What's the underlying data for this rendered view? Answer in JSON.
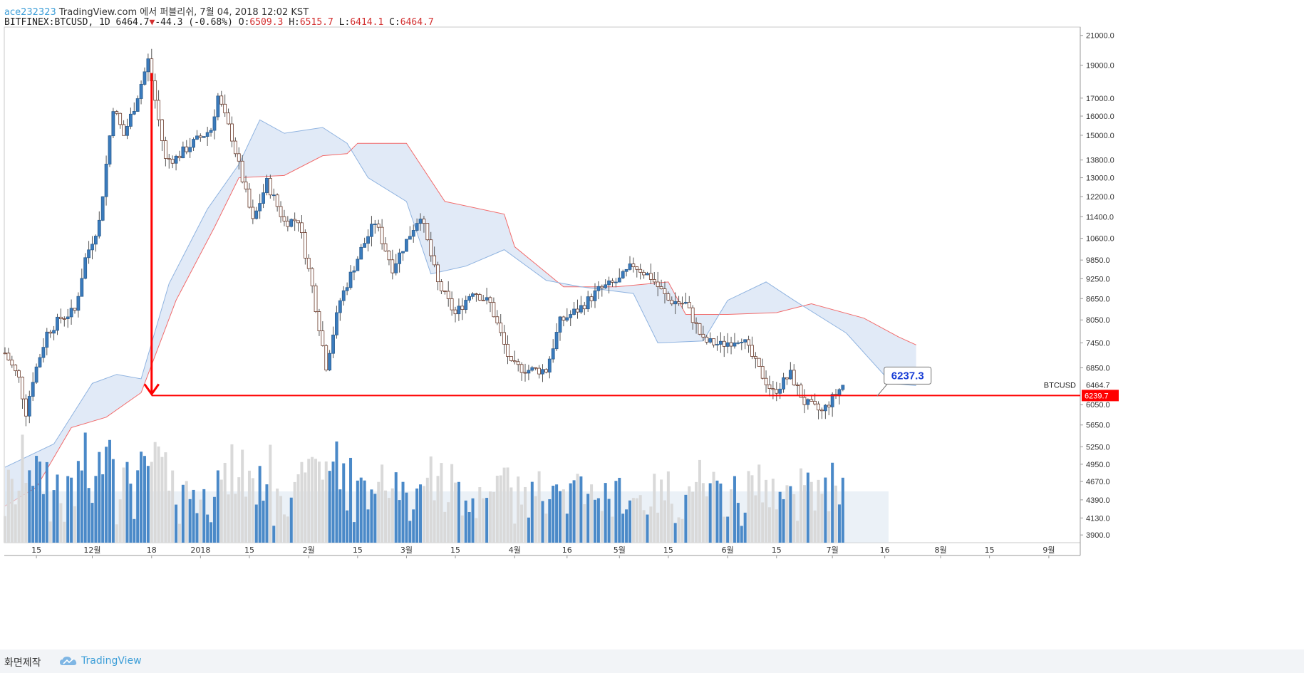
{
  "header": {
    "user": "ace232323",
    "published_text": "TradingView.com 에서 퍼블리쉬, 7월 04, 2018 12:02 KST"
  },
  "ohlc": {
    "symbol": "BITFINEX:BTCUSD, 1D",
    "last": "6464.7",
    "change": "-44.3 (-0.68%)",
    "o_label": "O:",
    "o": "6509.3",
    "h_label": "H:",
    "h": "6515.7",
    "l_label": "L:",
    "l": "6414.1",
    "c_label": "C:",
    "c": "6464.7"
  },
  "footer": {
    "made_label": "화면제작",
    "brand_label": "TradingView"
  },
  "colors": {
    "up_candle": "#3a7bbd",
    "down_candle": "#ffffff",
    "candle_outline": "#6b3a2a",
    "kumo_bull": "#dce6f6",
    "kumo_bear": "#fde0e0",
    "span_a": "#f26b6b",
    "span_b": "#8fb3e0",
    "accent_red": "#ff0000",
    "volume_up": "#4a89c8",
    "volume_down": "#d9d9d9"
  },
  "chart_data": {
    "type": "candlestick",
    "symbol_label": "BTCUSD",
    "last_price_label": "6464.7",
    "marked_price_label": "6239.7",
    "annotation_callout": "6237.3",
    "ylim": [
      3800,
      21600
    ],
    "y_scale": "log",
    "y_ticks": [
      "21000.0",
      "19000.0",
      "17000.0",
      "16000.0",
      "15000.0",
      "13800.0",
      "13000.0",
      "12200.0",
      "11400.0",
      "10600.0",
      "9850.0",
      "9250.0",
      "8650.0",
      "8050.0",
      "7450.0",
      "6850.0",
      "6050.0",
      "5650.0",
      "5250.0",
      "4950.0",
      "4670.0",
      "4390.0",
      "4130.0",
      "3900.0"
    ],
    "x_ticks": [
      {
        "label": "15",
        "date": "2017-11-15"
      },
      {
        "label": "12월",
        "date": "2017-12-01"
      },
      {
        "label": "18",
        "date": "2017-12-18"
      },
      {
        "label": "2018",
        "date": "2018-01-01"
      },
      {
        "label": "15",
        "date": "2018-01-15"
      },
      {
        "label": "2월",
        "date": "2018-02-01"
      },
      {
        "label": "15",
        "date": "2018-02-15"
      },
      {
        "label": "3월",
        "date": "2018-03-01"
      },
      {
        "label": "15",
        "date": "2018-03-15"
      },
      {
        "label": "4월",
        "date": "2018-04-01"
      },
      {
        "label": "16",
        "date": "2018-04-16"
      },
      {
        "label": "5월",
        "date": "2018-05-01"
      },
      {
        "label": "15",
        "date": "2018-05-15"
      },
      {
        "label": "6월",
        "date": "2018-06-01"
      },
      {
        "label": "15",
        "date": "2018-06-15"
      },
      {
        "label": "7월",
        "date": "2018-07-01"
      },
      {
        "label": "16",
        "date": "2018-07-16"
      },
      {
        "label": "8월",
        "date": "2018-08-01"
      },
      {
        "label": "15",
        "date": "2018-08-15"
      },
      {
        "label": "9월",
        "date": "2018-09-01"
      }
    ],
    "close_path": [
      {
        "date": "2017-11-06",
        "close": 7200
      },
      {
        "date": "2017-11-10",
        "close": 6600
      },
      {
        "date": "2017-11-12",
        "close": 5900
      },
      {
        "date": "2017-11-14",
        "close": 6600
      },
      {
        "date": "2017-11-18",
        "close": 7700
      },
      {
        "date": "2017-11-22",
        "close": 8100
      },
      {
        "date": "2017-11-26",
        "close": 8300
      },
      {
        "date": "2017-11-29",
        "close": 9900
      },
      {
        "date": "2017-12-03",
        "close": 11200
      },
      {
        "date": "2017-12-07",
        "close": 16500
      },
      {
        "date": "2017-12-10",
        "close": 15000
      },
      {
        "date": "2017-12-13",
        "close": 16500
      },
      {
        "date": "2017-12-17",
        "close": 19300
      },
      {
        "date": "2017-12-22",
        "close": 13800
      },
      {
        "date": "2017-12-25",
        "close": 13900
      },
      {
        "date": "2017-12-29",
        "close": 14500
      },
      {
        "date": "2018-01-04",
        "close": 15300
      },
      {
        "date": "2018-01-06",
        "close": 17100
      },
      {
        "date": "2018-01-10",
        "close": 14900
      },
      {
        "date": "2018-01-16",
        "close": 11200
      },
      {
        "date": "2018-01-20",
        "close": 12800
      },
      {
        "date": "2018-01-25",
        "close": 11200
      },
      {
        "date": "2018-01-29",
        "close": 11300
      },
      {
        "date": "2018-02-02",
        "close": 9000
      },
      {
        "date": "2018-02-06",
        "close": 6900
      },
      {
        "date": "2018-02-10",
        "close": 8600
      },
      {
        "date": "2018-02-16",
        "close": 10200
      },
      {
        "date": "2018-02-20",
        "close": 11200
      },
      {
        "date": "2018-02-25",
        "close": 9600
      },
      {
        "date": "2018-03-05",
        "close": 11500
      },
      {
        "date": "2018-03-10",
        "close": 9100
      },
      {
        "date": "2018-03-15",
        "close": 8200
      },
      {
        "date": "2018-03-20",
        "close": 8900
      },
      {
        "date": "2018-03-25",
        "close": 8500
      },
      {
        "date": "2018-03-31",
        "close": 6900
      },
      {
        "date": "2018-04-05",
        "close": 6800
      },
      {
        "date": "2018-04-10",
        "close": 6800
      },
      {
        "date": "2018-04-14",
        "close": 8000
      },
      {
        "date": "2018-04-20",
        "close": 8400
      },
      {
        "date": "2018-04-25",
        "close": 8900
      },
      {
        "date": "2018-05-01",
        "close": 9200
      },
      {
        "date": "2018-05-05",
        "close": 9700
      },
      {
        "date": "2018-05-10",
        "close": 9300
      },
      {
        "date": "2018-05-15",
        "close": 8600
      },
      {
        "date": "2018-05-20",
        "close": 8500
      },
      {
        "date": "2018-05-25",
        "close": 7500
      },
      {
        "date": "2018-05-30",
        "close": 7400
      },
      {
        "date": "2018-06-05",
        "close": 7600
      },
      {
        "date": "2018-06-10",
        "close": 6800
      },
      {
        "date": "2018-06-14",
        "close": 6300
      },
      {
        "date": "2018-06-19",
        "close": 6700
      },
      {
        "date": "2018-06-23",
        "close": 6100
      },
      {
        "date": "2018-06-28",
        "close": 5900
      },
      {
        "date": "2018-07-04",
        "close": 6465
      }
    ],
    "kumo_span_a": [
      {
        "date": "2017-11-06",
        "close": 4300
      },
      {
        "date": "2017-11-15",
        "close": 4580
      },
      {
        "date": "2017-11-25",
        "close": 5600
      },
      {
        "date": "2017-12-05",
        "close": 5800
      },
      {
        "date": "2017-12-15",
        "close": 6300
      },
      {
        "date": "2017-12-25",
        "close": 8600
      },
      {
        "date": "2018-01-05",
        "close": 11000
      },
      {
        "date": "2018-01-12",
        "close": 13000
      },
      {
        "date": "2018-01-25",
        "close": 13100
      },
      {
        "date": "2018-02-05",
        "close": 14000
      },
      {
        "date": "2018-02-12",
        "close": 14100
      },
      {
        "date": "2018-02-15",
        "close": 14600
      },
      {
        "date": "2018-03-01",
        "close": 14600
      },
      {
        "date": "2018-03-12",
        "close": 12000
      },
      {
        "date": "2018-03-29",
        "close": 11500
      },
      {
        "date": "2018-04-01",
        "close": 10300
      },
      {
        "date": "2018-04-15",
        "close": 9000
      },
      {
        "date": "2018-04-30",
        "close": 9000
      },
      {
        "date": "2018-05-15",
        "close": 9150
      },
      {
        "date": "2018-05-20",
        "close": 8200
      },
      {
        "date": "2018-06-01",
        "close": 8200
      },
      {
        "date": "2018-06-15",
        "close": 8250
      },
      {
        "date": "2018-06-25",
        "close": 8500
      },
      {
        "date": "2018-07-10",
        "close": 8100
      },
      {
        "date": "2018-07-20",
        "close": 7600
      },
      {
        "date": "2018-07-25",
        "close": 7400
      }
    ],
    "kumo_span_b": [
      {
        "date": "2017-11-06",
        "close": 4900
      },
      {
        "date": "2017-11-20",
        "close": 5300
      },
      {
        "date": "2017-12-01",
        "close": 6500
      },
      {
        "date": "2017-12-08",
        "close": 6700
      },
      {
        "date": "2017-12-15",
        "close": 6600
      },
      {
        "date": "2017-12-23",
        "close": 9100
      },
      {
        "date": "2018-01-03",
        "close": 11700
      },
      {
        "date": "2018-01-12",
        "close": 13600
      },
      {
        "date": "2018-01-18",
        "close": 15800
      },
      {
        "date": "2018-01-25",
        "close": 15100
      },
      {
        "date": "2018-02-05",
        "close": 15400
      },
      {
        "date": "2018-02-12",
        "close": 14600
      },
      {
        "date": "2018-02-18",
        "close": 13000
      },
      {
        "date": "2018-03-01",
        "close": 12000
      },
      {
        "date": "2018-03-08",
        "close": 9400
      },
      {
        "date": "2018-03-18",
        "close": 9650
      },
      {
        "date": "2018-03-29",
        "close": 10200
      },
      {
        "date": "2018-04-10",
        "close": 9200
      },
      {
        "date": "2018-04-20",
        "close": 9000
      },
      {
        "date": "2018-05-05",
        "close": 8800
      },
      {
        "date": "2018-05-12",
        "close": 7450
      },
      {
        "date": "2018-05-25",
        "close": 7500
      },
      {
        "date": "2018-06-01",
        "close": 8600
      },
      {
        "date": "2018-06-12",
        "close": 9150
      },
      {
        "date": "2018-06-20",
        "close": 8600
      },
      {
        "date": "2018-07-05",
        "close": 7700
      },
      {
        "date": "2018-07-18",
        "close": 6500
      },
      {
        "date": "2018-07-25",
        "close": 6450
      }
    ],
    "horizontal_level": 6239.7,
    "arrow": {
      "from_date": "2017-12-18",
      "from_price": 18500,
      "to_date": "2017-12-18",
      "to_price": 6239.7
    },
    "volume_axis_note": "volume histogram at bottom"
  }
}
